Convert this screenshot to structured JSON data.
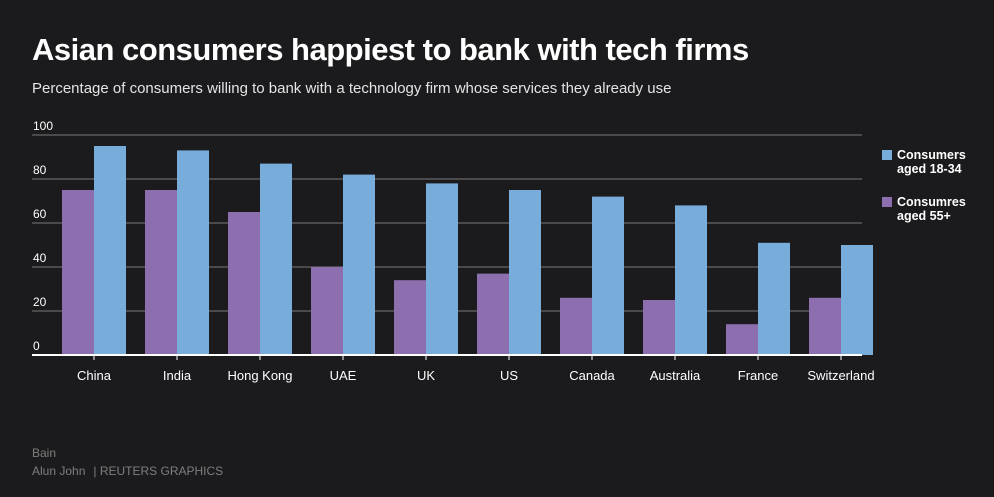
{
  "title": "Asian consumers happiest to bank with tech firms",
  "subtitle": "Percentage of consumers willing to bank with a technology firm whose services they already use",
  "source": "Bain",
  "credit": {
    "author": "Alun John",
    "org": "| REUTERS GRAPHICS"
  },
  "colors": {
    "background": "#1b1a1c",
    "young": "#77acdb",
    "old": "#8d6fb0",
    "grid": "#5a5a5a",
    "axis": "#ffffff"
  },
  "legend": [
    {
      "name": "Consumers aged 18-34",
      "color": "#77acdb"
    },
    {
      "name": "Consumres aged 55+",
      "color": "#8d6fb0"
    }
  ],
  "chart_data": {
    "type": "bar",
    "title": "Asian consumers happiest to bank with tech firms",
    "xlabel": "",
    "ylabel": "",
    "ylim": [
      0,
      100
    ],
    "yticks": [
      0,
      20,
      40,
      60,
      80,
      100
    ],
    "grid": true,
    "legend_position": "right",
    "categories": [
      "China",
      "India",
      "Hong Kong",
      "UAE",
      "UK",
      "US",
      "Canada",
      "Australia",
      "France",
      "Switzerland"
    ],
    "series": [
      {
        "name": "Consumres aged 55+",
        "color": "#8d6fb0",
        "values": [
          75,
          75,
          65,
          40,
          34,
          37,
          26,
          25,
          14,
          26
        ]
      },
      {
        "name": "Consumers aged 18-34",
        "color": "#77acdb",
        "values": [
          95,
          93,
          87,
          82,
          78,
          75,
          72,
          68,
          51,
          50
        ]
      }
    ]
  }
}
